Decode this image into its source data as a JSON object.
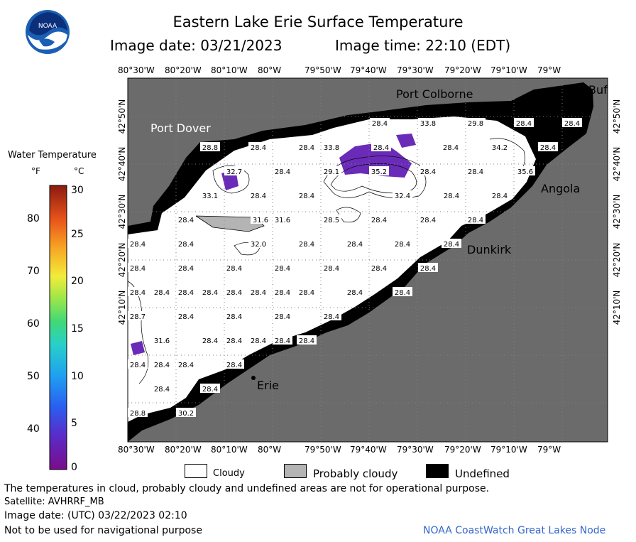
{
  "logo": {
    "text": "NOAA"
  },
  "title": "Eastern Lake Erie Surface Temperature",
  "image_date": "Image date: 03/21/2023",
  "image_time": "Image time: 22:10 (EDT)",
  "colorbar": {
    "title": "Water Temperature",
    "unit_f": "°F",
    "unit_c": "°C",
    "f_ticks": [
      "80",
      "70",
      "60",
      "50",
      "40"
    ],
    "c_ticks": [
      "30",
      "25",
      "20",
      "15",
      "10",
      "5",
      "0"
    ]
  },
  "axes": {
    "lon_ticks": [
      "80°30'W",
      "80°20'W",
      "80°10'W",
      "80°W",
      "79°50'W",
      "79°40'W",
      "79°30'W",
      "79°20'W",
      "79°10'W",
      "79°W"
    ],
    "lat_ticks": [
      "42°50'N",
      "42°40'N",
      "42°30'N",
      "42°20'N",
      "42°10'N"
    ]
  },
  "places": {
    "port_colborne": "Port Colborne",
    "port_dover": "Port Dover",
    "angola": "Angola",
    "dunkirk": "Dunkirk",
    "erie": "Erie",
    "buffalo": "Buf"
  },
  "temps": [
    {
      "v": "28.4"
    },
    {
      "v": "33.8"
    },
    {
      "v": "29.8"
    },
    {
      "v": "28.4"
    },
    {
      "v": "28.4"
    },
    {
      "v": "28.8"
    },
    {
      "v": "28.4"
    },
    {
      "v": "28.4"
    },
    {
      "v": "33.8"
    },
    {
      "v": "28.4"
    },
    {
      "v": "28.4"
    },
    {
      "v": "34.2"
    },
    {
      "v": "28.4"
    },
    {
      "v": "32.7"
    },
    {
      "v": "28.4"
    },
    {
      "v": "29.1"
    },
    {
      "v": "35.2"
    },
    {
      "v": "28.4"
    },
    {
      "v": "28.4"
    },
    {
      "v": "35.6"
    },
    {
      "v": "33.1"
    },
    {
      "v": "28.4"
    },
    {
      "v": "28.4"
    },
    {
      "v": "32.4"
    },
    {
      "v": "28.4"
    },
    {
      "v": "28.4"
    },
    {
      "v": "28.4"
    },
    {
      "v": "31.6"
    },
    {
      "v": "28.5"
    },
    {
      "v": "28.4"
    },
    {
      "v": "28.4"
    },
    {
      "v": "28.4"
    },
    {
      "v": "28.4"
    },
    {
      "v": "28.4"
    },
    {
      "v": "32.0"
    },
    {
      "v": "28.4"
    },
    {
      "v": "28.4"
    },
    {
      "v": "28.4"
    },
    {
      "v": "28.4"
    },
    {
      "v": "28.4"
    },
    {
      "v": "28.4"
    },
    {
      "v": "28.4"
    },
    {
      "v": "28.4"
    },
    {
      "v": "28.4"
    },
    {
      "v": "28.4"
    },
    {
      "v": "28.4"
    },
    {
      "v": "28.4"
    },
    {
      "v": "28.4"
    },
    {
      "v": "28.4"
    },
    {
      "v": "28.4"
    },
    {
      "v": "28.4"
    },
    {
      "v": "28.4"
    },
    {
      "v": "28.4"
    },
    {
      "v": "28.4"
    },
    {
      "v": "28.4"
    },
    {
      "v": "28.4"
    },
    {
      "v": "28.4"
    },
    {
      "v": "28.4"
    },
    {
      "v": "28.4"
    },
    {
      "v": "28.4"
    },
    {
      "v": "28.4"
    },
    {
      "v": "28.7"
    },
    {
      "v": "28.4"
    },
    {
      "v": "28.4"
    },
    {
      "v": "28.4"
    },
    {
      "v": "28.4"
    },
    {
      "v": "28.4"
    },
    {
      "v": "28.4"
    },
    {
      "v": "31.6"
    },
    {
      "v": "28.4"
    },
    {
      "v": "28.4"
    },
    {
      "v": "28.4"
    },
    {
      "v": "28.4"
    },
    {
      "v": "31.6"
    },
    {
      "v": "28.4"
    },
    {
      "v": "28.4"
    },
    {
      "v": "28.4"
    },
    {
      "v": "28.4"
    },
    {
      "v": "28.8"
    },
    {
      "v": "30.2"
    }
  ],
  "legend": {
    "cloudy": "Cloudy",
    "probably_cloudy": "Probably cloudy",
    "undefined": "Undefined"
  },
  "footer": {
    "disclaimer": "The temperatures in cloud, probably cloudy and undefined areas are not for operational purpose.",
    "satellite": "Satellite: AVHRRF_MB",
    "utc_date": "Image date: (UTC) 03/22/2023  02:10",
    "nav": "Not to be used for navigational purpose",
    "credit": "NOAA CoastWatch Great Lakes Node"
  },
  "colors": {
    "land": "#6b6b6b",
    "undefined": "#000000",
    "cloudy": "#ffffff",
    "probably_cloudy": "#b4b4b4",
    "cold": "#6a2cb8",
    "credit": "#3366cc"
  }
}
